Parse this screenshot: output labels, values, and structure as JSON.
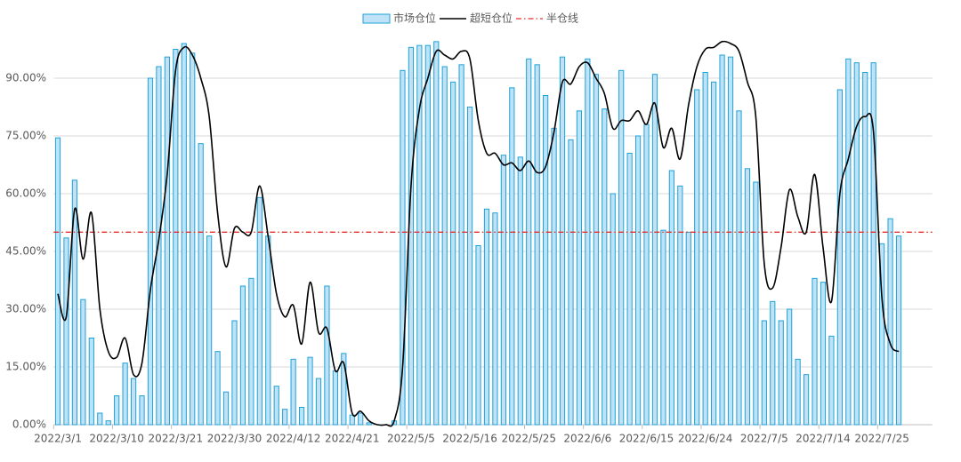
{
  "chart_data": {
    "type": "bar_line",
    "categories": [
      "2022/3/1",
      null,
      null,
      null,
      null,
      null,
      null,
      "2022/3/10",
      null,
      null,
      null,
      null,
      null,
      null,
      "2022/3/21",
      null,
      null,
      null,
      null,
      null,
      null,
      "2022/3/30",
      null,
      null,
      null,
      null,
      null,
      null,
      "2022/4/12",
      null,
      null,
      null,
      null,
      null,
      null,
      "2022/4/21",
      null,
      null,
      null,
      null,
      null,
      null,
      "2022/5/5",
      null,
      null,
      null,
      null,
      null,
      null,
      "2022/5/16",
      null,
      null,
      null,
      null,
      null,
      null,
      "2022/5/25",
      null,
      null,
      null,
      null,
      null,
      null,
      "2022/6/6",
      null,
      null,
      null,
      null,
      null,
      null,
      "2022/6/15",
      null,
      null,
      null,
      null,
      null,
      null,
      "2022/6/24",
      null,
      null,
      null,
      null,
      null,
      null,
      "2022/7/5",
      null,
      null,
      null,
      null,
      null,
      null,
      "2022/7/14",
      null,
      null,
      null,
      null,
      null,
      null,
      "2022/7/25",
      null,
      null,
      null,
      null
    ],
    "series": [
      {
        "name": "市场仓位",
        "kind": "bar",
        "color": "#1ea3d8",
        "fill": "#bfe2f6",
        "values": [
          74.5,
          48.5,
          63.5,
          32.5,
          22.5,
          3,
          1,
          7.5,
          16,
          12,
          7.5,
          90,
          93,
          95.5,
          97.5,
          99,
          96.5,
          73,
          49,
          19,
          8.5,
          27,
          36,
          38,
          59,
          49,
          10,
          4,
          17,
          4.5,
          17.5,
          12,
          36,
          14,
          18.5,
          2.5,
          3,
          0.5,
          0,
          0,
          1,
          92,
          98,
          98.5,
          98.5,
          99.5,
          93,
          89,
          93.5,
          82.5,
          46.5,
          56,
          55,
          70,
          87.5,
          69.5,
          95,
          93.5,
          85.5,
          77,
          95.5,
          74,
          81.5,
          95,
          91,
          82,
          60,
          92,
          70.5,
          75,
          78,
          91,
          50.5,
          66,
          62,
          50,
          87,
          91.5,
          89,
          96,
          95.5,
          81.5,
          66.5,
          63,
          27,
          32,
          27,
          30,
          17,
          13,
          38,
          37,
          23,
          87,
          95,
          94,
          91.5,
          94,
          47,
          53.5,
          49,
          null,
          null
        ]
      },
      {
        "name": "超短仓位",
        "kind": "line",
        "color": "#000000",
        "values": [
          34,
          28,
          56,
          43,
          55,
          30,
          19,
          17.5,
          22.5,
          13,
          16,
          35,
          48,
          65,
          92,
          98,
          96,
          90,
          80,
          55,
          41,
          51,
          50,
          50,
          62,
          49,
          34,
          28,
          31,
          21,
          37,
          24,
          25,
          14,
          16,
          3,
          3.5,
          1,
          0,
          0,
          1,
          15,
          62,
          82,
          90,
          97,
          96,
          95,
          97,
          95,
          79,
          70.5,
          70.5,
          67.5,
          68,
          66,
          68.5,
          65.5,
          67,
          76,
          89,
          88.5,
          93,
          94,
          90,
          86,
          77,
          79,
          79,
          81.5,
          78,
          83.5,
          72,
          77,
          69,
          83,
          93,
          97.5,
          98,
          99.5,
          99,
          97,
          89,
          80,
          42,
          35.5,
          46,
          61,
          54,
          50,
          65,
          46,
          32,
          60,
          69,
          77.5,
          80,
          76,
          33,
          21,
          19,
          null,
          null
        ]
      }
    ],
    "reference_line": {
      "name": "半仓线",
      "value": 50,
      "color": "#e8302a"
    },
    "ylim": [
      0,
      105
    ],
    "yticks": [
      {
        "value": 0,
        "label": "0.00%"
      },
      {
        "value": 15,
        "label": "15.00%"
      },
      {
        "value": 30,
        "label": "30.00%"
      },
      {
        "value": 45,
        "label": "45.00%"
      },
      {
        "value": 60,
        "label": "60.00%"
      },
      {
        "value": 75,
        "label": "75.00%"
      },
      {
        "value": 90,
        "label": "90.00%"
      }
    ],
    "grid": true,
    "legend": "top"
  }
}
